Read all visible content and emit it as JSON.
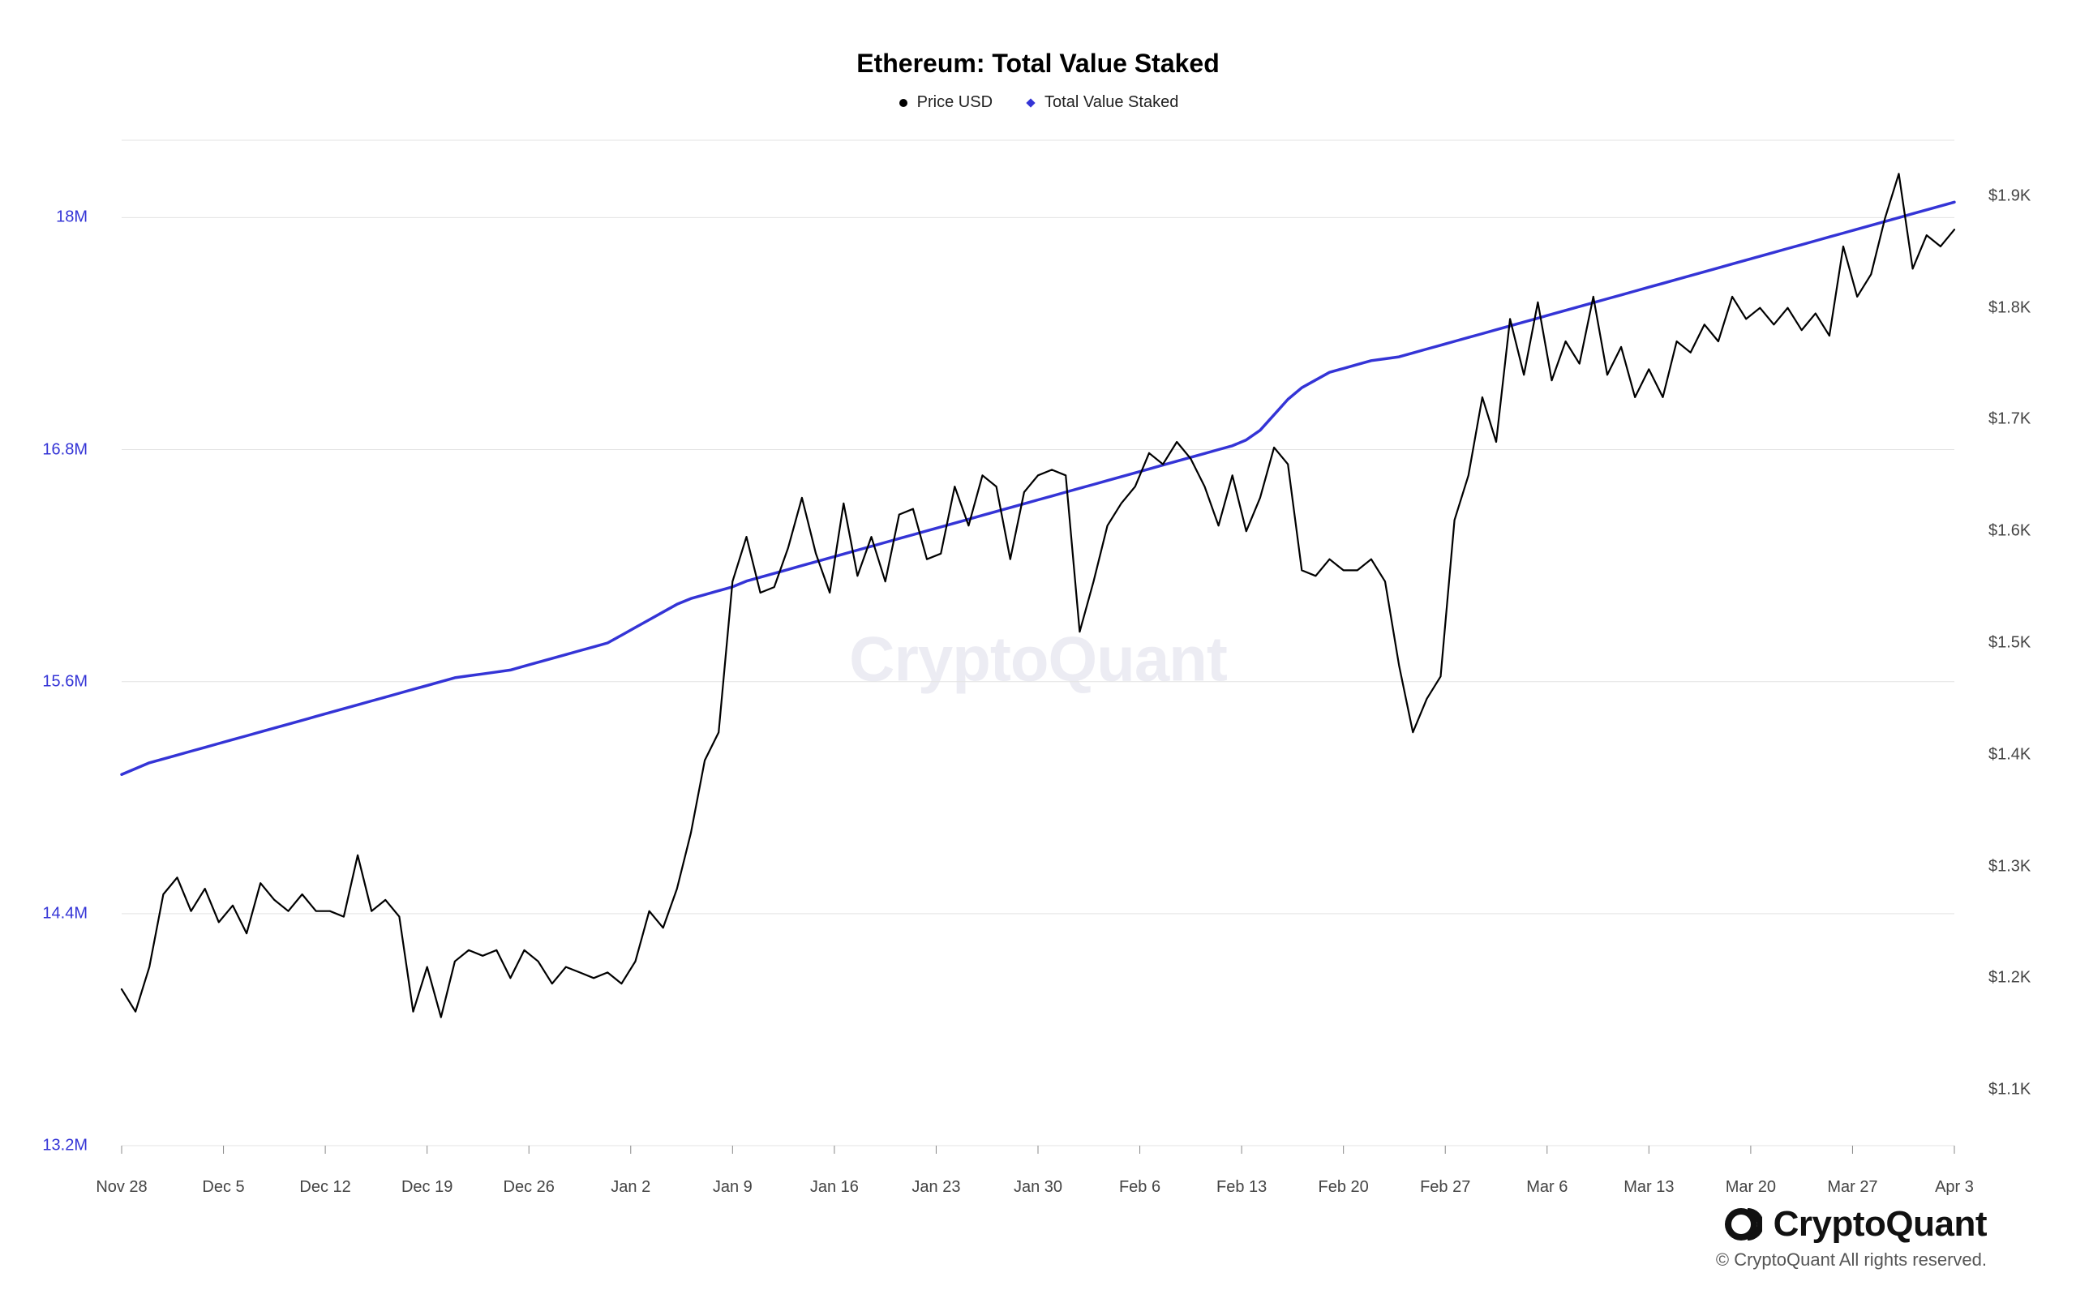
{
  "chart": {
    "type": "line-dual-axis",
    "title": "Ethereum: Total Value Staked",
    "title_fontsize": 32,
    "title_color": "#000000",
    "background_color": "#ffffff",
    "grid_color": "#e3e3e3",
    "grid_width": 1,
    "watermark": "CryptoQuant",
    "legend": [
      {
        "label": "Price USD",
        "marker": "circle",
        "color": "#000000"
      },
      {
        "label": "Total Value Staked",
        "marker": "diamond",
        "color": "#3434d6"
      }
    ],
    "x": {
      "ticks": [
        "Nov 28",
        "Dec 5",
        "Dec 12",
        "Dec 19",
        "Dec 26",
        "Jan 2",
        "Jan 9",
        "Jan 16",
        "Jan 23",
        "Jan 30",
        "Feb 6",
        "Feb 13",
        "Feb 20",
        "Feb 27",
        "Mar 6",
        "Mar 13",
        "Mar 20",
        "Mar 27",
        "Apr 3"
      ],
      "label_color": "#444444",
      "label_fontsize": 20
    },
    "y_left": {
      "ticks": [
        13.2,
        14.4,
        15.6,
        16.8,
        18.0
      ],
      "tick_labels": [
        "13.2M",
        "14.4M",
        "15.6M",
        "16.8M",
        "18M"
      ],
      "min": 13.2,
      "max": 18.4,
      "color": "#3434d6",
      "label_fontsize": 20
    },
    "y_right": {
      "ticks": [
        1100,
        1200,
        1300,
        1400,
        1500,
        1600,
        1700,
        1800,
        1900
      ],
      "tick_labels": [
        "$1.1K",
        "$1.2K",
        "$1.3K",
        "$1.4K",
        "$1.5K",
        "$1.6K",
        "$1.7K",
        "$1.8K",
        "$1.9K"
      ],
      "min": 1050,
      "max": 1950,
      "color": "#444444",
      "label_fontsize": 20
    },
    "series": {
      "staked": {
        "axis": "left",
        "color": "#3434d6",
        "width": 3.5,
        "data": [
          15.12,
          15.15,
          15.18,
          15.2,
          15.22,
          15.24,
          15.26,
          15.28,
          15.3,
          15.32,
          15.34,
          15.36,
          15.38,
          15.4,
          15.42,
          15.44,
          15.46,
          15.48,
          15.5,
          15.52,
          15.54,
          15.56,
          15.58,
          15.6,
          15.62,
          15.63,
          15.64,
          15.65,
          15.66,
          15.68,
          15.7,
          15.72,
          15.74,
          15.76,
          15.78,
          15.8,
          15.84,
          15.88,
          15.92,
          15.96,
          16.0,
          16.03,
          16.05,
          16.07,
          16.09,
          16.12,
          16.14,
          16.16,
          16.18,
          16.2,
          16.22,
          16.24,
          16.26,
          16.28,
          16.3,
          16.32,
          16.34,
          16.36,
          16.38,
          16.4,
          16.42,
          16.44,
          16.46,
          16.48,
          16.5,
          16.52,
          16.54,
          16.56,
          16.58,
          16.6,
          16.62,
          16.64,
          16.66,
          16.68,
          16.7,
          16.72,
          16.74,
          16.76,
          16.78,
          16.8,
          16.82,
          16.85,
          16.9,
          16.98,
          17.06,
          17.12,
          17.16,
          17.2,
          17.22,
          17.24,
          17.26,
          17.27,
          17.28,
          17.3,
          17.32,
          17.34,
          17.36,
          17.38,
          17.4,
          17.42,
          17.44,
          17.46,
          17.48,
          17.5,
          17.52,
          17.54,
          17.56,
          17.58,
          17.6,
          17.62,
          17.64,
          17.66,
          17.68,
          17.7,
          17.72,
          17.74,
          17.76,
          17.78,
          17.8,
          17.82,
          17.84,
          17.86,
          17.88,
          17.9,
          17.92,
          17.94,
          17.96,
          17.98,
          18.0,
          18.02,
          18.04,
          18.06,
          18.08
        ]
      },
      "price": {
        "axis": "right",
        "color": "#000000",
        "width": 2.2,
        "data": [
          1190,
          1170,
          1210,
          1275,
          1290,
          1260,
          1280,
          1250,
          1265,
          1240,
          1285,
          1270,
          1260,
          1275,
          1260,
          1260,
          1255,
          1310,
          1260,
          1270,
          1255,
          1170,
          1210,
          1165,
          1215,
          1225,
          1220,
          1225,
          1200,
          1225,
          1215,
          1195,
          1210,
          1205,
          1200,
          1205,
          1195,
          1215,
          1260,
          1245,
          1280,
          1330,
          1395,
          1420,
          1555,
          1595,
          1545,
          1550,
          1585,
          1630,
          1580,
          1545,
          1625,
          1560,
          1595,
          1555,
          1615,
          1620,
          1575,
          1580,
          1640,
          1605,
          1650,
          1640,
          1575,
          1635,
          1650,
          1655,
          1650,
          1510,
          1555,
          1605,
          1625,
          1640,
          1670,
          1660,
          1680,
          1665,
          1640,
          1605,
          1650,
          1600,
          1630,
          1675,
          1660,
          1565,
          1560,
          1575,
          1565,
          1565,
          1575,
          1555,
          1480,
          1420,
          1450,
          1470,
          1610,
          1650,
          1720,
          1680,
          1790,
          1740,
          1805,
          1735,
          1770,
          1750,
          1810,
          1740,
          1765,
          1720,
          1745,
          1720,
          1770,
          1760,
          1785,
          1770,
          1810,
          1790,
          1800,
          1785,
          1800,
          1780,
          1795,
          1775,
          1855,
          1810,
          1830,
          1880,
          1920,
          1835,
          1865,
          1855,
          1870
        ]
      }
    }
  },
  "footer": {
    "brand": "CryptoQuant",
    "copyright": "© CryptoQuant All rights reserved."
  }
}
